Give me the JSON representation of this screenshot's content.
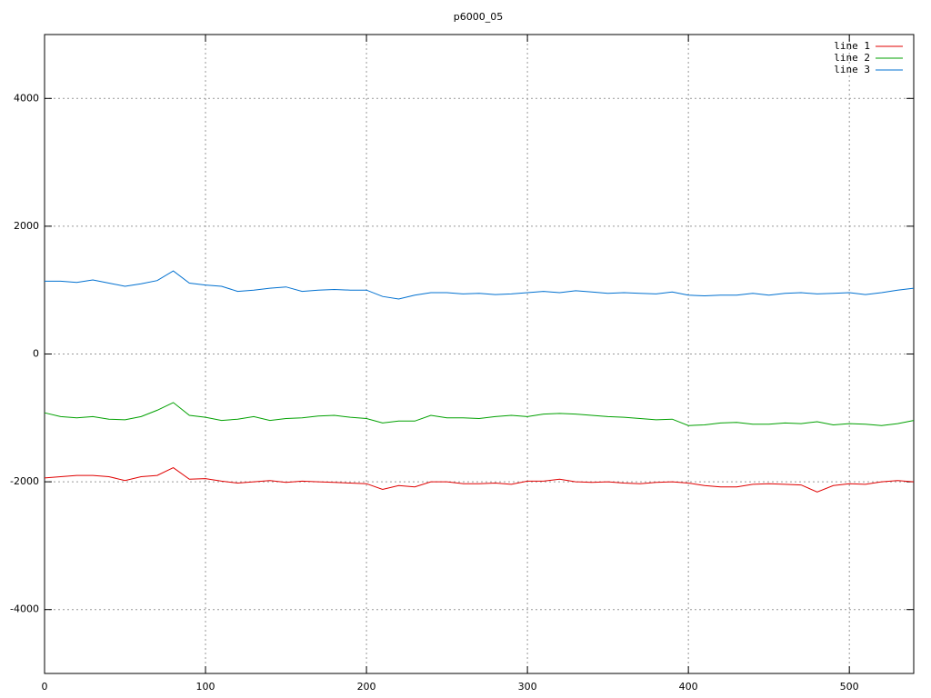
{
  "chart_data": {
    "type": "line",
    "title": "p6000_05",
    "x": [
      0,
      10,
      20,
      30,
      40,
      50,
      60,
      70,
      80,
      90,
      100,
      110,
      120,
      130,
      140,
      150,
      160,
      170,
      180,
      190,
      200,
      210,
      220,
      230,
      240,
      250,
      260,
      270,
      280,
      290,
      300,
      310,
      320,
      330,
      340,
      350,
      360,
      370,
      380,
      390,
      400,
      410,
      420,
      430,
      440,
      450,
      460,
      470,
      480,
      490,
      500,
      510,
      520,
      530,
      540
    ],
    "series": [
      {
        "name": "line 1",
        "color": "#e00000",
        "values": [
          -1940,
          -1920,
          -1900,
          -1900,
          -1920,
          -1980,
          -1920,
          -1900,
          -1780,
          -1960,
          -1950,
          -1990,
          -2020,
          -2000,
          -1980,
          -2010,
          -1990,
          -2000,
          -2010,
          -2020,
          -2030,
          -2120,
          -2060,
          -2080,
          -2000,
          -2000,
          -2030,
          -2030,
          -2020,
          -2040,
          -1990,
          -1990,
          -1960,
          -2000,
          -2010,
          -2000,
          -2020,
          -2030,
          -2010,
          -2000,
          -2020,
          -2060,
          -2080,
          -2080,
          -2040,
          -2030,
          -2040,
          -2050,
          -2160,
          -2060,
          -2030,
          -2040,
          -2000,
          -1980,
          -2000
        ]
      },
      {
        "name": "line 2",
        "color": "#00a000",
        "values": [
          -920,
          -980,
          -1000,
          -980,
          -1020,
          -1030,
          -980,
          -880,
          -760,
          -960,
          -990,
          -1040,
          -1020,
          -980,
          -1040,
          -1010,
          -1000,
          -970,
          -960,
          -990,
          -1010,
          -1080,
          -1050,
          -1050,
          -960,
          -1000,
          -1000,
          -1010,
          -980,
          -960,
          -980,
          -940,
          -930,
          -940,
          -960,
          -980,
          -990,
          -1010,
          -1030,
          -1020,
          -1120,
          -1110,
          -1080,
          -1070,
          -1100,
          -1100,
          -1080,
          -1090,
          -1060,
          -1110,
          -1090,
          -1100,
          -1120,
          -1090,
          -1040
        ]
      },
      {
        "name": "line 3",
        "color": "#0070d0",
        "values": [
          1140,
          1140,
          1120,
          1160,
          1110,
          1060,
          1100,
          1150,
          1300,
          1110,
          1080,
          1060,
          980,
          1000,
          1030,
          1050,
          980,
          1000,
          1010,
          1000,
          1000,
          900,
          860,
          920,
          960,
          960,
          940,
          950,
          930,
          940,
          960,
          980,
          960,
          990,
          970,
          950,
          960,
          950,
          940,
          970,
          920,
          910,
          920,
          920,
          950,
          920,
          950,
          960,
          940,
          950,
          960,
          930,
          960,
          1000,
          1030
        ]
      }
    ],
    "xlim": [
      0,
      540
    ],
    "ylim": [
      -5000,
      5000
    ],
    "xticks": [
      0,
      100,
      200,
      300,
      400,
      500
    ],
    "yticks": [
      -4000,
      -2000,
      0,
      2000,
      4000
    ],
    "grid": true,
    "legend": "top-right"
  }
}
